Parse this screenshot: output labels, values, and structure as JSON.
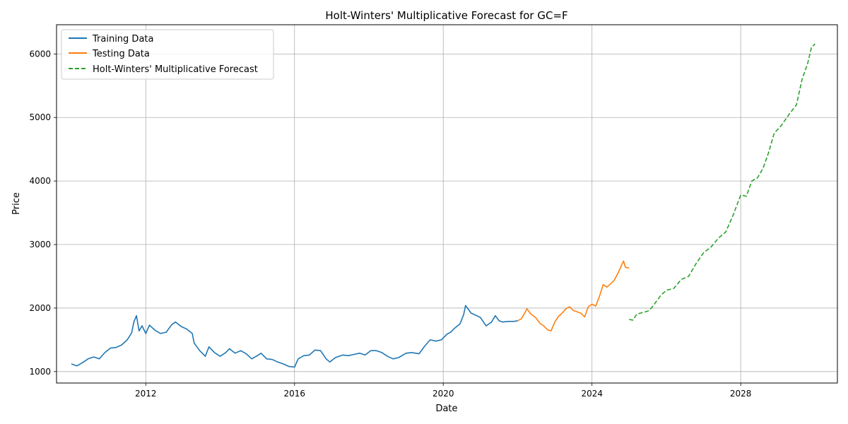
{
  "chart_data": {
    "type": "line",
    "title": "Holt-Winters' Multiplicative Forecast for GC=F",
    "xlabel": "Date",
    "ylabel": "Price",
    "xlim": [
      2009.6,
      2030.6
    ],
    "ylim": [
      820,
      6460
    ],
    "x_ticks": [
      2012,
      2016,
      2020,
      2024,
      2028
    ],
    "x_tick_labels": [
      "2012",
      "2016",
      "2020",
      "2024",
      "2028"
    ],
    "y_ticks": [
      1000,
      2000,
      3000,
      4000,
      5000,
      6000
    ],
    "y_tick_labels": [
      "1000",
      "2000",
      "3000",
      "4000",
      "5000",
      "6000"
    ],
    "grid": true,
    "legend_position": "top-left",
    "series": [
      {
        "name": "Training Data",
        "color": "#1f77b4",
        "style": "solid",
        "points": [
          [
            2010.0,
            1120
          ],
          [
            2010.15,
            1090
          ],
          [
            2010.3,
            1140
          ],
          [
            2010.45,
            1200
          ],
          [
            2010.6,
            1230
          ],
          [
            2010.75,
            1200
          ],
          [
            2010.9,
            1300
          ],
          [
            2011.05,
            1370
          ],
          [
            2011.2,
            1380
          ],
          [
            2011.35,
            1420
          ],
          [
            2011.5,
            1500
          ],
          [
            2011.62,
            1610
          ],
          [
            2011.68,
            1780
          ],
          [
            2011.75,
            1880
          ],
          [
            2011.82,
            1640
          ],
          [
            2011.9,
            1720
          ],
          [
            2012.0,
            1600
          ],
          [
            2012.1,
            1730
          ],
          [
            2012.25,
            1650
          ],
          [
            2012.4,
            1600
          ],
          [
            2012.55,
            1620
          ],
          [
            2012.7,
            1740
          ],
          [
            2012.8,
            1780
          ],
          [
            2012.95,
            1710
          ],
          [
            2013.1,
            1670
          ],
          [
            2013.25,
            1600
          ],
          [
            2013.3,
            1450
          ],
          [
            2013.45,
            1330
          ],
          [
            2013.6,
            1240
          ],
          [
            2013.7,
            1390
          ],
          [
            2013.85,
            1300
          ],
          [
            2014.0,
            1240
          ],
          [
            2014.15,
            1300
          ],
          [
            2014.25,
            1360
          ],
          [
            2014.4,
            1290
          ],
          [
            2014.55,
            1330
          ],
          [
            2014.7,
            1280
          ],
          [
            2014.85,
            1200
          ],
          [
            2015.0,
            1250
          ],
          [
            2015.1,
            1290
          ],
          [
            2015.25,
            1200
          ],
          [
            2015.4,
            1190
          ],
          [
            2015.55,
            1150
          ],
          [
            2015.7,
            1120
          ],
          [
            2015.85,
            1080
          ],
          [
            2016.0,
            1070
          ],
          [
            2016.1,
            1200
          ],
          [
            2016.25,
            1250
          ],
          [
            2016.4,
            1260
          ],
          [
            2016.55,
            1340
          ],
          [
            2016.7,
            1330
          ],
          [
            2016.85,
            1200
          ],
          [
            2016.95,
            1150
          ],
          [
            2017.1,
            1220
          ],
          [
            2017.3,
            1260
          ],
          [
            2017.45,
            1250
          ],
          [
            2017.6,
            1270
          ],
          [
            2017.75,
            1290
          ],
          [
            2017.9,
            1260
          ],
          [
            2018.05,
            1330
          ],
          [
            2018.2,
            1330
          ],
          [
            2018.35,
            1300
          ],
          [
            2018.5,
            1240
          ],
          [
            2018.65,
            1200
          ],
          [
            2018.8,
            1220
          ],
          [
            2019.0,
            1290
          ],
          [
            2019.15,
            1300
          ],
          [
            2019.35,
            1280
          ],
          [
            2019.5,
            1400
          ],
          [
            2019.65,
            1500
          ],
          [
            2019.8,
            1480
          ],
          [
            2019.95,
            1500
          ],
          [
            2020.1,
            1590
          ],
          [
            2020.2,
            1620
          ],
          [
            2020.3,
            1680
          ],
          [
            2020.45,
            1750
          ],
          [
            2020.55,
            1900
          ],
          [
            2020.6,
            2040
          ],
          [
            2020.75,
            1920
          ],
          [
            2020.9,
            1880
          ],
          [
            2021.0,
            1850
          ],
          [
            2021.15,
            1720
          ],
          [
            2021.3,
            1780
          ],
          [
            2021.4,
            1880
          ],
          [
            2021.5,
            1800
          ],
          [
            2021.6,
            1780
          ],
          [
            2021.75,
            1790
          ],
          [
            2021.9,
            1790
          ],
          [
            2022.0,
            1800
          ]
        ]
      },
      {
        "name": "Testing Data",
        "color": "#ff7f0e",
        "style": "solid",
        "points": [
          [
            2022.0,
            1800
          ],
          [
            2022.1,
            1830
          ],
          [
            2022.2,
            1930
          ],
          [
            2022.25,
            1990
          ],
          [
            2022.35,
            1910
          ],
          [
            2022.5,
            1840
          ],
          [
            2022.6,
            1760
          ],
          [
            2022.7,
            1720
          ],
          [
            2022.8,
            1660
          ],
          [
            2022.9,
            1640
          ],
          [
            2023.0,
            1780
          ],
          [
            2023.1,
            1870
          ],
          [
            2023.2,
            1920
          ],
          [
            2023.3,
            1990
          ],
          [
            2023.4,
            2020
          ],
          [
            2023.5,
            1960
          ],
          [
            2023.6,
            1940
          ],
          [
            2023.7,
            1920
          ],
          [
            2023.8,
            1860
          ],
          [
            2023.9,
            2020
          ],
          [
            2024.0,
            2060
          ],
          [
            2024.1,
            2030
          ],
          [
            2024.2,
            2180
          ],
          [
            2024.3,
            2370
          ],
          [
            2024.4,
            2330
          ],
          [
            2024.5,
            2380
          ],
          [
            2024.6,
            2440
          ],
          [
            2024.7,
            2550
          ],
          [
            2024.8,
            2680
          ],
          [
            2024.85,
            2740
          ],
          [
            2024.9,
            2640
          ],
          [
            2025.0,
            2630
          ]
        ]
      },
      {
        "name": "Holt-Winters' Multiplicative Forecast",
        "color": "#2ca02c",
        "style": "dashed",
        "points": [
          [
            2025.0,
            1820
          ],
          [
            2025.1,
            1810
          ],
          [
            2025.2,
            1900
          ],
          [
            2025.3,
            1920
          ],
          [
            2025.5,
            1950
          ],
          [
            2025.6,
            2000
          ],
          [
            2025.7,
            2080
          ],
          [
            2025.85,
            2200
          ],
          [
            2026.0,
            2280
          ],
          [
            2026.2,
            2310
          ],
          [
            2026.4,
            2450
          ],
          [
            2026.6,
            2500
          ],
          [
            2026.8,
            2700
          ],
          [
            2027.0,
            2870
          ],
          [
            2027.2,
            2960
          ],
          [
            2027.4,
            3100
          ],
          [
            2027.6,
            3200
          ],
          [
            2027.8,
            3470
          ],
          [
            2028.0,
            3780
          ],
          [
            2028.15,
            3760
          ],
          [
            2028.3,
            4000
          ],
          [
            2028.45,
            4050
          ],
          [
            2028.6,
            4200
          ],
          [
            2028.75,
            4450
          ],
          [
            2028.9,
            4750
          ],
          [
            2029.1,
            4880
          ],
          [
            2029.3,
            5050
          ],
          [
            2029.5,
            5200
          ],
          [
            2029.65,
            5600
          ],
          [
            2029.8,
            5850
          ],
          [
            2029.9,
            6100
          ],
          [
            2030.0,
            6160
          ]
        ]
      }
    ]
  }
}
